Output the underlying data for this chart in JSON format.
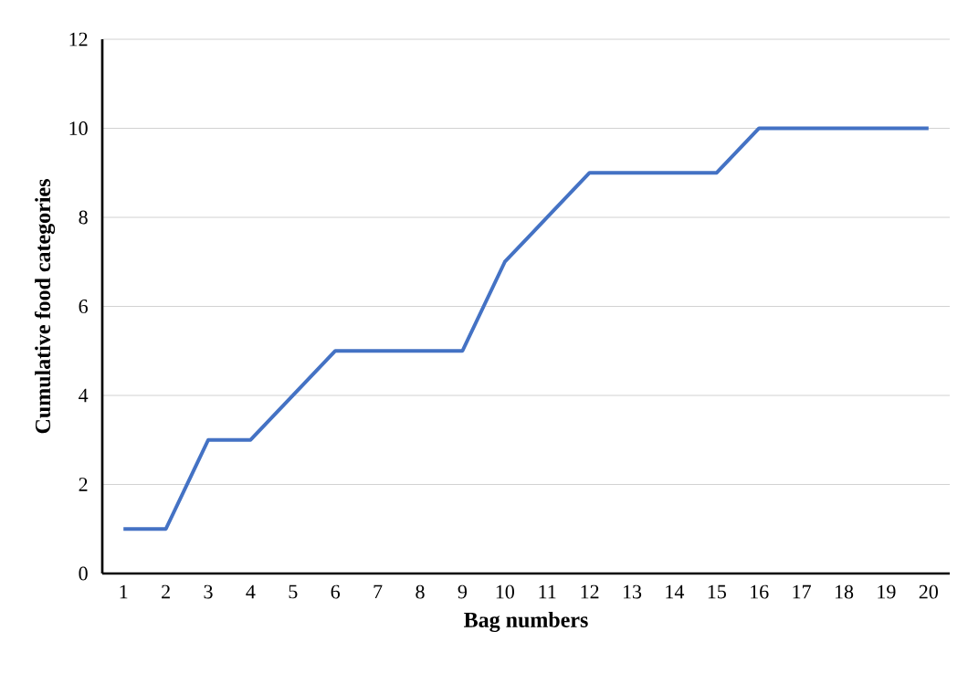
{
  "chart_data": {
    "type": "line",
    "xlabel": "Bag numbers",
    "ylabel": "Cumulative food categories",
    "categories": [
      "1",
      "2",
      "3",
      "4",
      "5",
      "6",
      "7",
      "8",
      "9",
      "10",
      "11",
      "12",
      "13",
      "14",
      "15",
      "16",
      "17",
      "18",
      "19",
      "20"
    ],
    "series": [
      {
        "color": "#4472c4",
        "values": [
          1,
          1,
          3,
          3,
          4,
          5,
          5,
          5,
          5,
          7,
          8,
          9,
          9,
          9,
          9,
          10,
          10,
          10,
          10,
          10
        ]
      }
    ],
    "ylim": [
      0,
      12
    ],
    "yticks": [
      0,
      2,
      4,
      6,
      8,
      10,
      12
    ],
    "grid": "y"
  }
}
